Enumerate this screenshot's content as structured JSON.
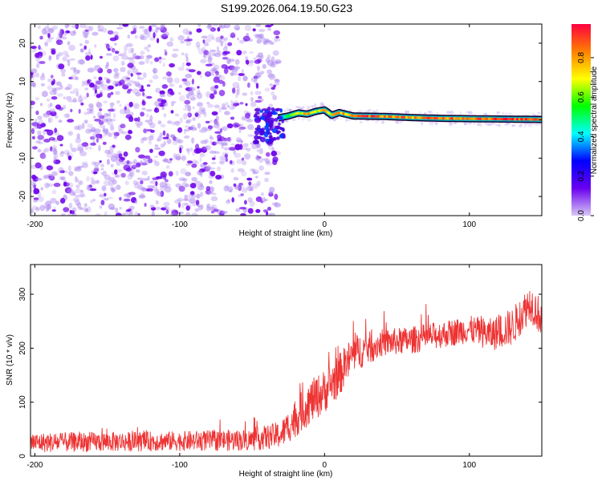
{
  "chart_data": [
    {
      "type": "heatmap",
      "title": "S199.2026.064.19.50.G23",
      "xlabel": "Height of straight line (km)",
      "ylabel": "Frequency (Hz)",
      "xlim": [
        -203,
        150
      ],
      "ylim": [
        -25,
        25
      ],
      "xticks": [
        -200,
        -100,
        0,
        100
      ],
      "yticks": [
        -20,
        -10,
        0,
        10,
        20
      ],
      "colorbar": {
        "label": "Normalized spectral amplitude",
        "range": [
          0,
          0.97
        ],
        "ticks": [
          0.0,
          0.2,
          0.4,
          0.6,
          0.8
        ],
        "colors": [
          "#d8c8f4",
          "#6a00f0",
          "#0000ff",
          "#00ffff",
          "#00ff00",
          "#ffff00",
          "#ff8000",
          "#ff0040"
        ]
      },
      "noise_region_x": [
        -203,
        -32
      ],
      "signal_track": [
        {
          "x": -32,
          "freq": 0.5,
          "amp": 0.3
        },
        {
          "x": -25,
          "freq": 1.0,
          "amp": 0.55
        },
        {
          "x": -18,
          "freq": 1.8,
          "amp": 0.75
        },
        {
          "x": -12,
          "freq": 1.5,
          "amp": 0.8
        },
        {
          "x": -6,
          "freq": 2.2,
          "amp": 0.7
        },
        {
          "x": 0,
          "freq": 2.6,
          "amp": 0.85
        },
        {
          "x": 5,
          "freq": 1.2,
          "amp": 0.75
        },
        {
          "x": 10,
          "freq": 1.9,
          "amp": 0.8
        },
        {
          "x": 20,
          "freq": 1.0,
          "amp": 0.9
        },
        {
          "x": 40,
          "freq": 0.9,
          "amp": 0.9
        },
        {
          "x": 60,
          "freq": 0.6,
          "amp": 0.85
        },
        {
          "x": 80,
          "freq": 0.4,
          "amp": 0.9
        },
        {
          "x": 100,
          "freq": 0.3,
          "amp": 0.92
        },
        {
          "x": 125,
          "freq": 0.2,
          "amp": 0.95
        },
        {
          "x": 150,
          "freq": 0.1,
          "amp": 0.95
        }
      ]
    },
    {
      "type": "line",
      "xlabel": "Height of straight line (km)",
      "ylabel": "SNR (10 * v/v)",
      "xlim": [
        -203,
        150
      ],
      "ylim": [
        0,
        355
      ],
      "xticks": [
        -200,
        -100,
        0,
        100
      ],
      "yticks": [
        0,
        100,
        200,
        300
      ],
      "series_color": "#ee3333",
      "envelope": [
        {
          "x": -203,
          "mean": 25,
          "spread": 18
        },
        {
          "x": -100,
          "mean": 28,
          "spread": 18
        },
        {
          "x": -50,
          "mean": 30,
          "spread": 20
        },
        {
          "x": -30,
          "mean": 40,
          "spread": 25
        },
        {
          "x": -20,
          "mean": 70,
          "spread": 35
        },
        {
          "x": -10,
          "mean": 100,
          "spread": 40
        },
        {
          "x": 0,
          "mean": 120,
          "spread": 40
        },
        {
          "x": 10,
          "mean": 150,
          "spread": 40
        },
        {
          "x": 20,
          "mean": 190,
          "spread": 35
        },
        {
          "x": 40,
          "mean": 210,
          "spread": 25
        },
        {
          "x": 60,
          "mean": 215,
          "spread": 25
        },
        {
          "x": 80,
          "mean": 225,
          "spread": 25
        },
        {
          "x": 100,
          "mean": 235,
          "spread": 25
        },
        {
          "x": 115,
          "mean": 225,
          "spread": 30
        },
        {
          "x": 130,
          "mean": 240,
          "spread": 35
        },
        {
          "x": 142,
          "mean": 285,
          "spread": 35
        },
        {
          "x": 150,
          "mean": 255,
          "spread": 35
        }
      ]
    }
  ]
}
